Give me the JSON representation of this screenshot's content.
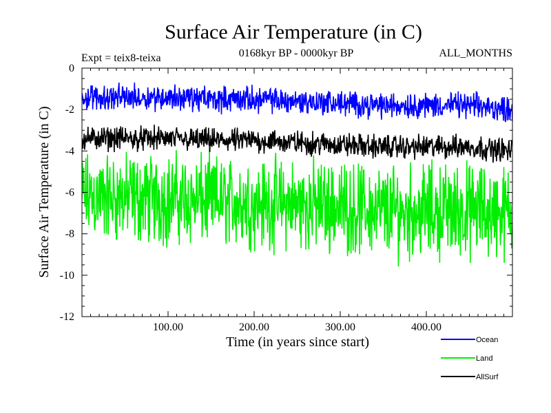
{
  "chart_data": {
    "type": "line",
    "title": "Surface Air Temperature (in C)",
    "subtitle_left": "Expt = teix8-teixa",
    "subtitle_center": "0168kyr BP - 0000kyr BP",
    "subtitle_right": "ALL_MONTHS",
    "xlabel": "Time (in years since start)",
    "ylabel": "Surface Air Temperature (in C)",
    "xlim": [
      0,
      500
    ],
    "ylim": [
      -12,
      0
    ],
    "x_tick_labels": [
      "100.00",
      "200.00",
      "300.00",
      "400.00"
    ],
    "x_tick_values": [
      100,
      200,
      300,
      400
    ],
    "y_tick_labels": [
      "0",
      "-2",
      "-4",
      "-6",
      "-8",
      "-10",
      "-12"
    ],
    "y_tick_values": [
      0,
      -2,
      -4,
      -6,
      -8,
      -10,
      -12
    ],
    "grid": false,
    "legend_position": "bottom-right",
    "series": [
      {
        "name": "Land",
        "color": "#00ee00",
        "x": [
          0,
          50,
          100,
          150,
          200,
          250,
          300,
          350,
          400,
          450,
          500
        ],
        "mean": [
          -6.2,
          -6.3,
          -6.3,
          -6.4,
          -6.5,
          -6.6,
          -6.7,
          -6.9,
          -6.9,
          -6.9,
          -7.0
        ],
        "spread": [
          2.6,
          2.6,
          2.7,
          2.6,
          2.6,
          2.7,
          2.6,
          2.7,
          2.8,
          2.8,
          2.8
        ]
      },
      {
        "name": "AllSurf",
        "color": "#000000",
        "x": [
          0,
          50,
          100,
          150,
          200,
          250,
          300,
          350,
          400,
          450,
          500
        ],
        "mean": [
          -3.4,
          -3.4,
          -3.4,
          -3.5,
          -3.5,
          -3.6,
          -3.7,
          -3.8,
          -3.8,
          -3.8,
          -4.0
        ],
        "spread": [
          0.7,
          0.7,
          0.7,
          0.7,
          0.7,
          0.7,
          0.7,
          0.7,
          0.7,
          0.7,
          0.7
        ]
      },
      {
        "name": "Ocean",
        "color": "#0000ff",
        "x": [
          0,
          50,
          100,
          150,
          200,
          250,
          300,
          350,
          400,
          450,
          500
        ],
        "mean": [
          -1.4,
          -1.4,
          -1.4,
          -1.5,
          -1.5,
          -1.6,
          -1.7,
          -1.8,
          -1.8,
          -1.8,
          -2.0
        ],
        "spread": [
          0.75,
          0.75,
          0.75,
          0.75,
          0.75,
          0.75,
          0.75,
          0.75,
          0.75,
          0.75,
          0.75
        ]
      }
    ],
    "legend": [
      {
        "name": "Ocean",
        "color": "#0000ff"
      },
      {
        "name": "Land",
        "color": "#00ee00"
      },
      {
        "name": "AllSurf",
        "color": "#000000"
      }
    ]
  }
}
